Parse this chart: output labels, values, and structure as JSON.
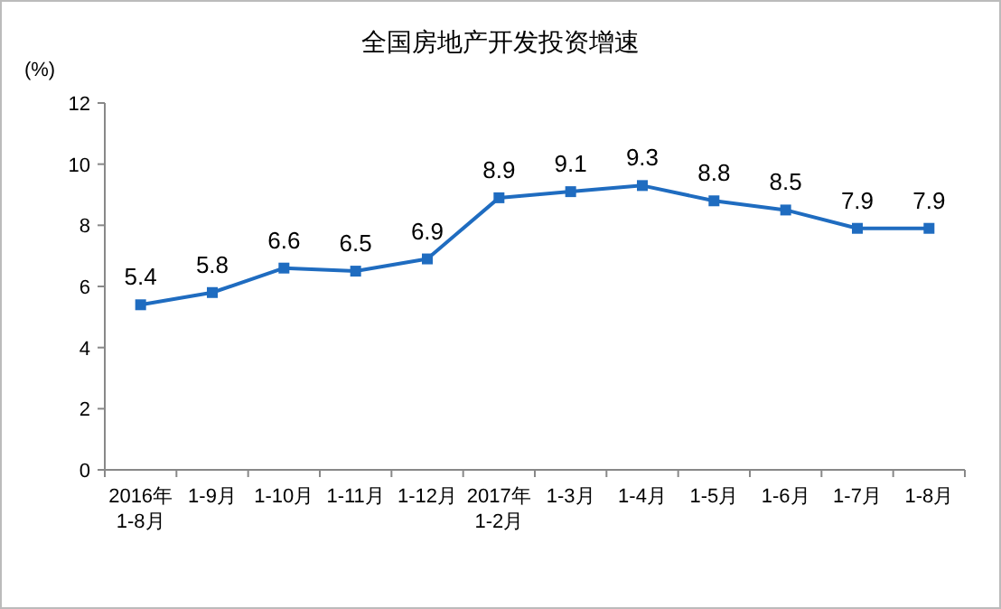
{
  "chart_data": {
    "type": "line",
    "title": "全国房地产开发投资增速",
    "ylabel": "(%)",
    "categories": [
      "2016年\n1-8月",
      "1-9月",
      "1-10月",
      "1-11月",
      "1-12月",
      "2017年\n1-2月",
      "1-3月",
      "1-4月",
      "1-5月",
      "1-6月",
      "1-7月",
      "1-8月"
    ],
    "series": [
      {
        "color": "#1f6cc0",
        "values": [
          5.4,
          5.8,
          6.6,
          6.5,
          6.9,
          8.9,
          9.1,
          9.3,
          8.8,
          8.5,
          7.9,
          7.9
        ]
      }
    ],
    "ylim": [
      0,
      12
    ],
    "yticks": [
      0,
      2,
      4,
      6,
      8,
      10,
      12
    ],
    "marker": "square",
    "data_labels": true,
    "grid": false
  }
}
